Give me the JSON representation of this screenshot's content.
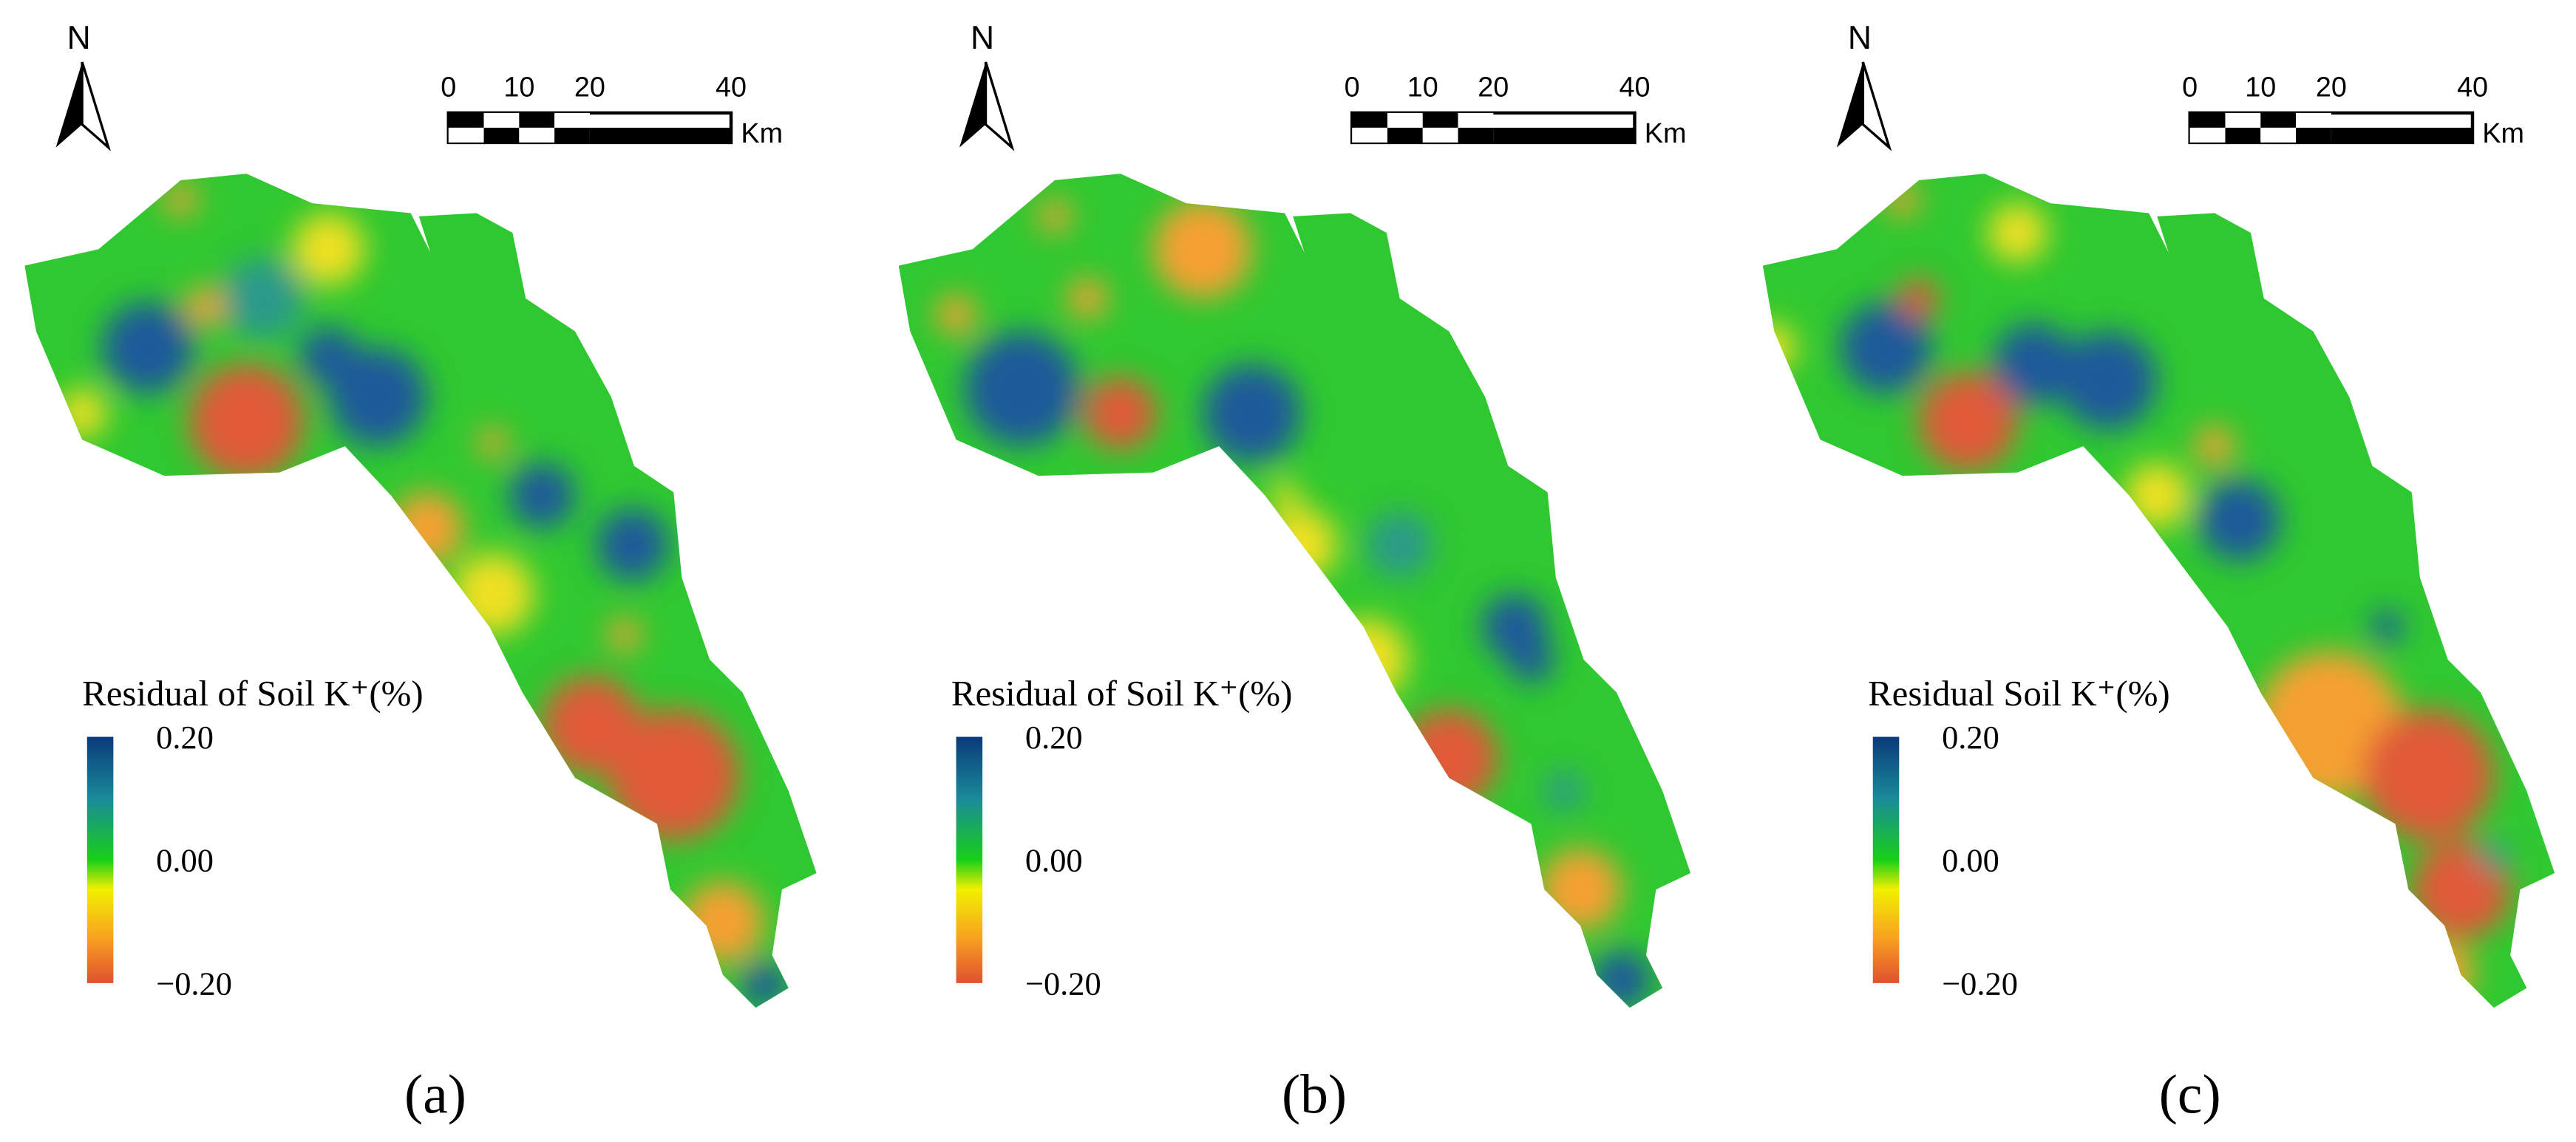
{
  "panels": [
    {
      "label": "(a)",
      "north": "N",
      "scale_bar": {
        "ticks": [
          "0",
          "10",
          "20",
          "40"
        ],
        "unit": "Km"
      },
      "legend": {
        "title": "Residual of Soil K⁺(%)",
        "ticks": [
          "0.20",
          "0.00",
          "−0.20"
        ]
      }
    },
    {
      "label": "(b)",
      "north": "N",
      "scale_bar": {
        "ticks": [
          "0",
          "10",
          "20",
          "40"
        ],
        "unit": "Km"
      },
      "legend": {
        "title": "Residual of Soil K⁺(%)",
        "ticks": [
          "0.20",
          "0.00",
          "−0.20"
        ]
      }
    },
    {
      "label": "(c)",
      "north": "N",
      "scale_bar": {
        "ticks": [
          "0",
          "10",
          "20",
          "40"
        ],
        "unit": "Km"
      },
      "legend": {
        "title": "Residual Soil K⁺(%)",
        "ticks": [
          "0.20",
          "0.00",
          "−0.20"
        ]
      }
    }
  ]
}
